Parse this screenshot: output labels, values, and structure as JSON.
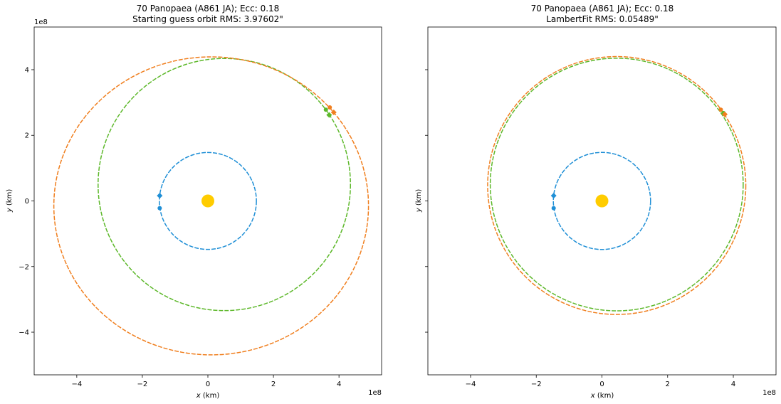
{
  "chart_data": [
    {
      "type": "scatter",
      "title_line1": "70 Panopaea (A861 JA); Ecc: 0.18",
      "title_line2": "Starting guess orbit RMS: 3.97602\"",
      "xlabel_var": "x",
      "xlabel_unit": " (km)",
      "ylabel_var": "y",
      "ylabel_unit": " (km)",
      "xlim": [
        -5.3,
        5.3
      ],
      "ylim": [
        -5.3,
        5.3
      ],
      "offset_label": "1e8",
      "x_ticks": [
        -4,
        -2,
        0,
        2,
        4
      ],
      "y_ticks": [
        -4,
        -2,
        0,
        2,
        4
      ],
      "x_tick_labels": [
        "−4",
        "−2",
        "0",
        "2",
        "4"
      ],
      "y_tick_labels": [
        "−4",
        "−2",
        "0",
        "2",
        "4"
      ],
      "show_x_tick_labels": true,
      "show_y_tick_labels": true,
      "sun": {
        "x": 0,
        "y": 0,
        "color": "#ffcc00"
      },
      "orbits": [
        {
          "color": "#1f8fd6",
          "center": [
            0,
            0
          ],
          "rx": 1.48,
          "ry": 1.48
        },
        {
          "color": "#5db82a",
          "center": [
            0.5,
            0.5
          ],
          "rx": 3.85,
          "ry": 3.85
        },
        {
          "color": "#f07f1f",
          "center": [
            0.1,
            -0.15
          ],
          "rx": 4.8,
          "ry": 4.55
        }
      ],
      "markers": [
        {
          "color": "#1f8fd6",
          "shape": "diamond",
          "x": -1.47,
          "y": 0.16
        },
        {
          "color": "#1f8fd6",
          "shape": "dot",
          "x": -1.47,
          "y": -0.22
        },
        {
          "color": "#5db82a",
          "shape": "dot",
          "x": 3.6,
          "y": 2.78
        },
        {
          "color": "#5db82a",
          "shape": "diamond",
          "x": 3.7,
          "y": 2.62
        },
        {
          "color": "#f07f1f",
          "shape": "dot",
          "x": 3.72,
          "y": 2.85
        },
        {
          "color": "#f07f1f",
          "shape": "diamond",
          "x": 3.84,
          "y": 2.7
        }
      ]
    },
    {
      "type": "scatter",
      "title_line1": "70 Panopaea (A861 JA); Ecc: 0.18",
      "title_line2": "LambertFit RMS: 0.05489\"",
      "xlabel_var": "x",
      "xlabel_unit": " (km)",
      "ylabel_var": "y",
      "ylabel_unit": " (km)",
      "xlim": [
        -5.3,
        5.3
      ],
      "ylim": [
        -5.3,
        5.3
      ],
      "offset_label": "1e8",
      "x_ticks": [
        -4,
        -2,
        0,
        2,
        4
      ],
      "y_ticks": [
        -4,
        -2,
        0,
        2,
        4
      ],
      "x_tick_labels": [
        "−4",
        "−2",
        "0",
        "2",
        "4"
      ],
      "y_tick_labels": [
        "−4",
        "−2",
        "0",
        "2",
        "4"
      ],
      "show_x_tick_labels": true,
      "show_y_tick_labels": false,
      "sun": {
        "x": 0,
        "y": 0,
        "color": "#ffcc00"
      },
      "orbits": [
        {
          "color": "#1f8fd6",
          "center": [
            0,
            0
          ],
          "rx": 1.48,
          "ry": 1.48
        },
        {
          "color": "#f07f1f",
          "center": [
            0.45,
            0.47
          ],
          "rx": 3.93,
          "ry": 3.93
        },
        {
          "color": "#5db82a",
          "center": [
            0.45,
            0.5
          ],
          "rx": 3.85,
          "ry": 3.85
        }
      ],
      "markers": [
        {
          "color": "#1f8fd6",
          "shape": "diamond",
          "x": -1.47,
          "y": 0.16
        },
        {
          "color": "#1f8fd6",
          "shape": "dot",
          "x": -1.47,
          "y": -0.22
        },
        {
          "color": "#f07f1f",
          "shape": "dot",
          "x": 3.62,
          "y": 2.78
        },
        {
          "color": "#5db82a",
          "shape": "dot",
          "x": 3.7,
          "y": 2.68
        },
        {
          "color": "#f07f1f",
          "shape": "diamond",
          "x": 3.74,
          "y": 2.64
        }
      ]
    }
  ]
}
